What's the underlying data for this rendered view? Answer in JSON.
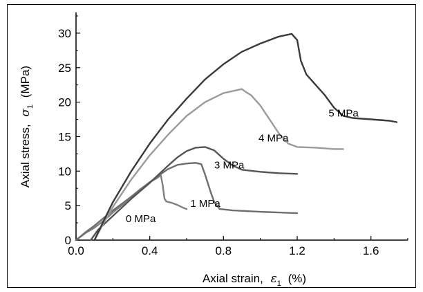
{
  "chart_data": {
    "type": "line",
    "xlabel": {
      "prefix": "Axial strain,",
      "symbol": "ε",
      "subscript": "1",
      "suffix": "(%)"
    },
    "ylabel": {
      "prefix": "Axial stress,",
      "symbol": "σ",
      "subscript": "1",
      "suffix": "(MPa)"
    },
    "xlim": [
      0,
      1.8
    ],
    "ylim": [
      0,
      33
    ],
    "xticks": [
      0.0,
      0.4,
      0.8,
      1.2,
      1.6
    ],
    "xtick_labels": [
      "0.0",
      "0.4",
      "0.8",
      "1.2",
      "1.6"
    ],
    "yticks": [
      0,
      5,
      10,
      15,
      20,
      25,
      30
    ],
    "ytick_labels": [
      "0",
      "5",
      "10",
      "15",
      "20",
      "25",
      "30"
    ],
    "grid": false,
    "legend": "none",
    "series": [
      {
        "name": "0 MPa",
        "color": "#808080",
        "points": [
          [
            0,
            0
          ],
          [
            0.05,
            1.0
          ],
          [
            0.1,
            1.8
          ],
          [
            0.15,
            2.8
          ],
          [
            0.2,
            4.0
          ],
          [
            0.25,
            5.1
          ],
          [
            0.3,
            6.3
          ],
          [
            0.35,
            7.4
          ],
          [
            0.4,
            8.4
          ],
          [
            0.44,
            9.0
          ],
          [
            0.46,
            9.4
          ],
          [
            0.47,
            8.0
          ],
          [
            0.48,
            6.0
          ],
          [
            0.49,
            5.6
          ],
          [
            0.52,
            5.4
          ],
          [
            0.55,
            5.1
          ],
          [
            0.58,
            4.7
          ],
          [
            0.6,
            4.5
          ]
        ]
      },
      {
        "name": "1 MPa",
        "color": "#6e6e6e",
        "points": [
          [
            0,
            0
          ],
          [
            0.05,
            1.1
          ],
          [
            0.1,
            2.1
          ],
          [
            0.15,
            3.2
          ],
          [
            0.2,
            4.3
          ],
          [
            0.25,
            5.3
          ],
          [
            0.3,
            6.3
          ],
          [
            0.35,
            7.3
          ],
          [
            0.4,
            8.4
          ],
          [
            0.45,
            9.4
          ],
          [
            0.5,
            10.3
          ],
          [
            0.55,
            10.9
          ],
          [
            0.6,
            11.1
          ],
          [
            0.65,
            11.2
          ],
          [
            0.68,
            11.0
          ],
          [
            0.7,
            9.5
          ],
          [
            0.73,
            7.0
          ],
          [
            0.75,
            5.5
          ],
          [
            0.78,
            4.5
          ],
          [
            0.85,
            4.3
          ],
          [
            1.0,
            4.1
          ],
          [
            1.1,
            4.0
          ],
          [
            1.2,
            3.9
          ]
        ]
      },
      {
        "name": "3 MPa",
        "color": "#555555",
        "points": [
          [
            0.08,
            0
          ],
          [
            0.12,
            1.5
          ],
          [
            0.2,
            3.5
          ],
          [
            0.3,
            6.0
          ],
          [
            0.4,
            8.3
          ],
          [
            0.5,
            10.8
          ],
          [
            0.55,
            12.0
          ],
          [
            0.6,
            12.9
          ],
          [
            0.65,
            13.4
          ],
          [
            0.7,
            13.5
          ],
          [
            0.75,
            13.0
          ],
          [
            0.8,
            11.8
          ],
          [
            0.85,
            10.8
          ],
          [
            0.9,
            10.2
          ],
          [
            1.0,
            9.9
          ],
          [
            1.1,
            9.7
          ],
          [
            1.2,
            9.6
          ]
        ]
      },
      {
        "name": "4 MPa",
        "color": "#9a9a9a",
        "points": [
          [
            0.1,
            0
          ],
          [
            0.15,
            2.5
          ],
          [
            0.2,
            4.8
          ],
          [
            0.3,
            8.8
          ],
          [
            0.4,
            12.3
          ],
          [
            0.5,
            15.3
          ],
          [
            0.6,
            18.0
          ],
          [
            0.7,
            20.0
          ],
          [
            0.8,
            21.3
          ],
          [
            0.9,
            21.9
          ],
          [
            0.92,
            21.5
          ],
          [
            0.95,
            21.0
          ],
          [
            1.0,
            19.5
          ],
          [
            1.05,
            17.5
          ],
          [
            1.1,
            15.5
          ],
          [
            1.15,
            14.0
          ],
          [
            1.2,
            13.5
          ],
          [
            1.3,
            13.4
          ],
          [
            1.4,
            13.2
          ],
          [
            1.45,
            13.2
          ]
        ]
      },
      {
        "name": "5 MPa",
        "color": "#3a3a3a",
        "points": [
          [
            0.1,
            0
          ],
          [
            0.15,
            2.8
          ],
          [
            0.2,
            5.5
          ],
          [
            0.3,
            10.0
          ],
          [
            0.4,
            14.0
          ],
          [
            0.5,
            17.5
          ],
          [
            0.6,
            20.5
          ],
          [
            0.7,
            23.3
          ],
          [
            0.8,
            25.5
          ],
          [
            0.9,
            27.3
          ],
          [
            1.0,
            28.5
          ],
          [
            1.1,
            29.5
          ],
          [
            1.17,
            29.9
          ],
          [
            1.2,
            29.0
          ],
          [
            1.22,
            26.0
          ],
          [
            1.25,
            24.0
          ],
          [
            1.3,
            22.5
          ],
          [
            1.35,
            21.0
          ],
          [
            1.4,
            19.2
          ],
          [
            1.45,
            18.0
          ],
          [
            1.5,
            17.7
          ],
          [
            1.6,
            17.5
          ],
          [
            1.7,
            17.3
          ],
          [
            1.74,
            17.1
          ]
        ]
      }
    ]
  }
}
